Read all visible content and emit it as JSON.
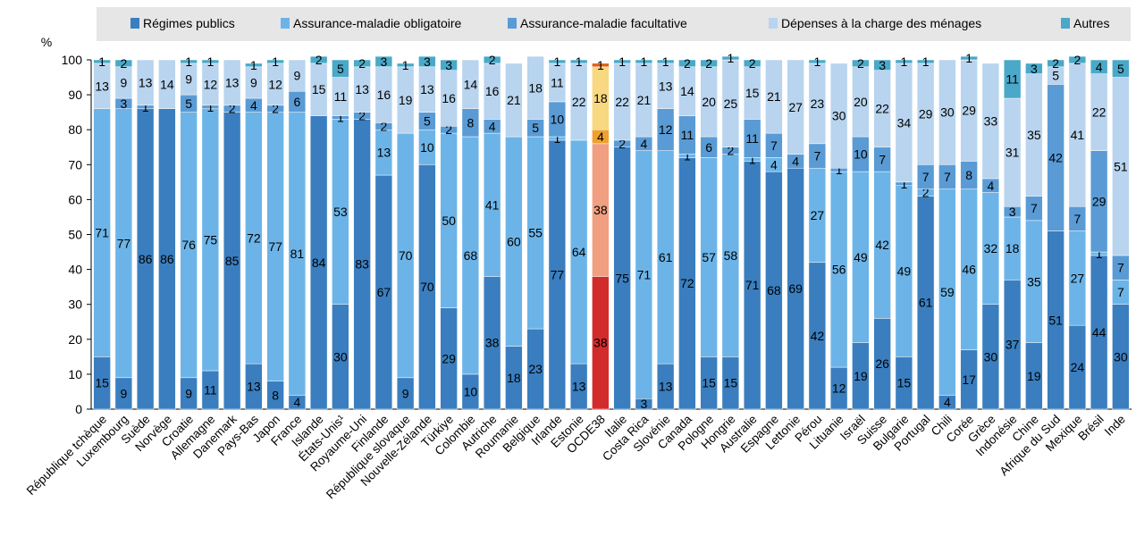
{
  "chart_data": {
    "type": "bar",
    "stacked": true,
    "orientation": "vertical",
    "title": "",
    "xlabel": "",
    "ylabel": "%",
    "ylim": [
      0,
      100
    ],
    "yticks": [
      0,
      10,
      20,
      30,
      40,
      50,
      60,
      70,
      80,
      90,
      100
    ],
    "grid": false,
    "legend_position": "top",
    "highlight_category": "OCDE38",
    "categories": [
      "République tchèque",
      "Luxembourg",
      "Suède",
      "Norvège",
      "Croatie",
      "Allemagne",
      "Danemark",
      "Pays-Bas",
      "Japon",
      "France",
      "Islande",
      "États-Unis¹",
      "Royaume-Uni",
      "Finlande",
      "République slovaque",
      "Nouvelle-Zélande",
      "Türkiye",
      "Colombie",
      "Autriche",
      "Roumanie",
      "Belgique",
      "Irlande",
      "Estonie",
      "OCDE38",
      "Italie",
      "Costa Rica",
      "Slovénie",
      "Canada",
      "Pologne",
      "Hongrie",
      "Australie",
      "Espagne",
      "Lettonie",
      "Pérou",
      "Lituanie",
      "Israël",
      "Suisse",
      "Bulgarie",
      "Portugal",
      "Chili",
      "Corée",
      "Grèce",
      "Indonésie",
      "Chine",
      "Afrique du Sud",
      "Mexique",
      "Brésil",
      "Inde"
    ],
    "series": [
      {
        "name": "Régimes publics",
        "color": "#3a7ebf",
        "highlight_color": "#d22b2b",
        "values": [
          15,
          9,
          86,
          86,
          9,
          11,
          85,
          13,
          8,
          4,
          84,
          30,
          83,
          67,
          9,
          70,
          29,
          10,
          38,
          18,
          23,
          77,
          13,
          38,
          75,
          3,
          13,
          72,
          15,
          15,
          71,
          68,
          69,
          42,
          12,
          19,
          26,
          15,
          61,
          4,
          17,
          30,
          37,
          19,
          51,
          24,
          44,
          30
        ]
      },
      {
        "name": "Assurance-maladie obligatoire",
        "color": "#6cb4e8",
        "highlight_color": "#f0a080",
        "values": [
          71,
          77,
          0,
          0,
          76,
          75,
          0,
          72,
          77,
          81,
          0,
          53,
          0,
          13,
          70,
          10,
          50,
          68,
          41,
          60,
          55,
          1,
          64,
          38,
          0,
          71,
          61,
          1,
          57,
          58,
          1,
          4,
          0,
          27,
          56,
          49,
          42,
          49,
          2,
          59,
          46,
          32,
          18,
          35,
          0,
          27,
          1,
          7
        ]
      },
      {
        "name": "Assurance-maladie facultative",
        "color": "#5a9bd5",
        "highlight_color": "#f0a030",
        "values": [
          0,
          3,
          1,
          0,
          5,
          1,
          2,
          4,
          2,
          6,
          0,
          1,
          2,
          2,
          0,
          5,
          2,
          8,
          4,
          0,
          5,
          10,
          0,
          4,
          2,
          4,
          12,
          11,
          6,
          2,
          11,
          7,
          4,
          7,
          1,
          10,
          7,
          1,
          7,
          7,
          8,
          4,
          3,
          7,
          42,
          7,
          29,
          7
        ]
      },
      {
        "name": "Dépenses à la charge des ménages",
        "color": "#b8d4ee",
        "highlight_color": "#f8d880",
        "values": [
          13,
          9,
          13,
          14,
          9,
          12,
          13,
          9,
          12,
          9,
          15,
          11,
          13,
          16,
          19,
          13,
          16,
          14,
          16,
          21,
          18,
          11,
          22,
          18,
          22,
          21,
          13,
          14,
          20,
          25,
          15,
          21,
          27,
          23,
          30,
          20,
          22,
          34,
          29,
          30,
          29,
          33,
          31,
          35,
          5,
          41,
          22,
          51
        ]
      },
      {
        "name": "Autres",
        "color": "#4aa8c8",
        "highlight_color": "#e06010",
        "values": [
          1,
          2,
          0,
          0,
          1,
          1,
          0,
          1,
          1,
          0,
          2,
          5,
          2,
          3,
          1,
          3,
          3,
          0,
          2,
          0,
          0,
          1,
          1,
          1,
          1,
          1,
          1,
          2,
          2,
          1,
          2,
          0,
          0,
          1,
          0,
          2,
          3,
          1,
          1,
          0,
          1,
          0,
          11,
          3,
          2,
          2,
          4,
          5
        ]
      }
    ]
  }
}
